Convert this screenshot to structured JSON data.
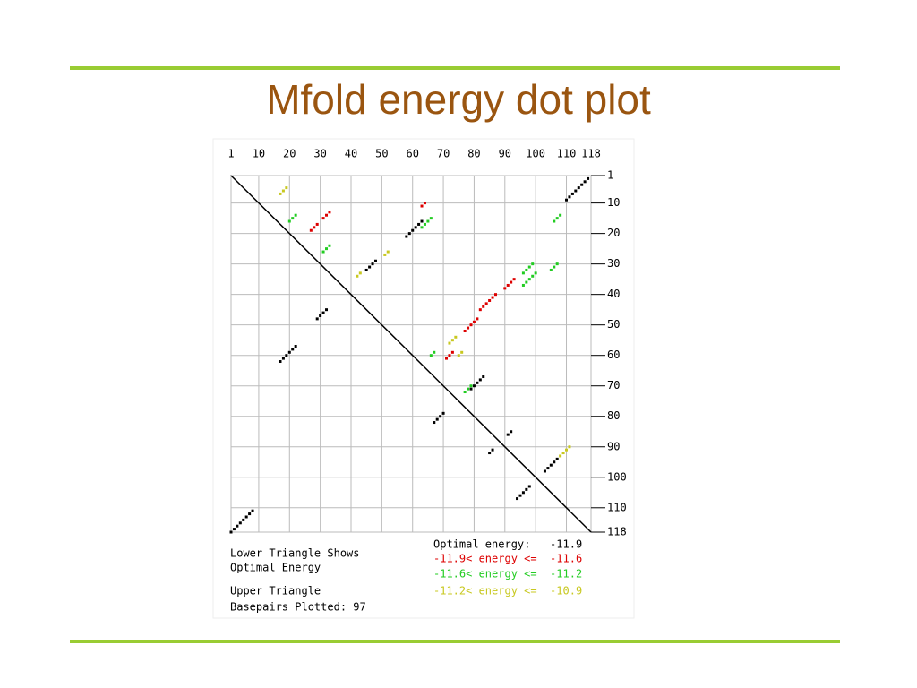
{
  "slide_title": "Mfold energy dot plot",
  "chart_data": {
    "type": "scatter",
    "xlim": [
      1,
      118
    ],
    "ylim": [
      1,
      118
    ],
    "y_inverted": true,
    "grid": true,
    "xticks": [
      1,
      10,
      20,
      30,
      40,
      50,
      60,
      70,
      80,
      90,
      100,
      110,
      118
    ],
    "yticks": [
      1,
      10,
      20,
      30,
      40,
      50,
      60,
      70,
      80,
      90,
      100,
      110,
      118
    ],
    "notes": [
      "Lower Triangle Shows",
      "Optimal Energy",
      "Upper Triangle",
      "Basepairs Plotted: 97"
    ],
    "series": [
      {
        "name": "Optimal energy:   -11.9",
        "color": "#000000",
        "x": [
          110,
          111,
          112,
          113,
          114,
          115,
          116,
          117,
          58,
          59,
          60,
          61,
          62,
          63,
          45,
          46,
          47,
          48,
          79,
          80,
          81,
          82,
          83,
          103,
          104,
          105,
          106,
          107,
          1,
          2,
          3,
          4,
          5,
          6,
          7,
          8,
          17,
          18,
          19,
          20,
          21,
          22,
          29,
          30,
          31,
          32,
          67,
          68,
          69,
          70,
          91,
          92,
          85,
          86,
          94,
          95,
          96,
          97,
          98
        ],
        "y": [
          9,
          8,
          7,
          6,
          5,
          4,
          3,
          2,
          21,
          20,
          19,
          18,
          17,
          16,
          32,
          31,
          30,
          29,
          71,
          70,
          69,
          68,
          67,
          98,
          97,
          96,
          95,
          94,
          118,
          117,
          116,
          115,
          114,
          113,
          112,
          111,
          62,
          61,
          60,
          59,
          58,
          57,
          48,
          47,
          46,
          45,
          82,
          81,
          80,
          79,
          86,
          85,
          92,
          91,
          107,
          106,
          105,
          104,
          103
        ]
      },
      {
        "name": "-11.9< energy <=  -11.6",
        "color": "#dd0000",
        "x": [
          27,
          28,
          29,
          31,
          32,
          33,
          63,
          64,
          71,
          72,
          73,
          77,
          78,
          79,
          80,
          81,
          82,
          83,
          84,
          85,
          86,
          87,
          90,
          91,
          92,
          93
        ],
        "y": [
          19,
          18,
          17,
          15,
          14,
          13,
          11,
          10,
          61,
          60,
          59,
          52,
          51,
          50,
          49,
          48,
          45,
          44,
          43,
          42,
          41,
          40,
          38,
          37,
          36,
          35
        ]
      },
      {
        "name": "-11.6< energy <=  -11.2",
        "color": "#22cc22",
        "x": [
          20,
          21,
          22,
          31,
          32,
          33,
          63,
          64,
          65,
          66,
          96,
          97,
          98,
          99,
          100,
          96,
          97,
          98,
          99,
          105,
          106,
          107,
          106,
          107,
          108,
          66,
          67,
          77,
          78,
          79
        ],
        "y": [
          16,
          15,
          14,
          26,
          25,
          24,
          18,
          17,
          16,
          15,
          37,
          36,
          35,
          34,
          33,
          33,
          32,
          31,
          30,
          32,
          31,
          30,
          16,
          15,
          14,
          60,
          59,
          72,
          71,
          70
        ]
      },
      {
        "name": "-11.2< energy <=  -10.9",
        "color": "#c8c820",
        "x": [
          17,
          18,
          19,
          42,
          43,
          51,
          52,
          72,
          73,
          74,
          75,
          76,
          108,
          109,
          110,
          111
        ],
        "y": [
          7,
          6,
          5,
          34,
          33,
          27,
          26,
          56,
          55,
          54,
          60,
          59,
          93,
          92,
          91,
          90
        ]
      }
    ]
  }
}
